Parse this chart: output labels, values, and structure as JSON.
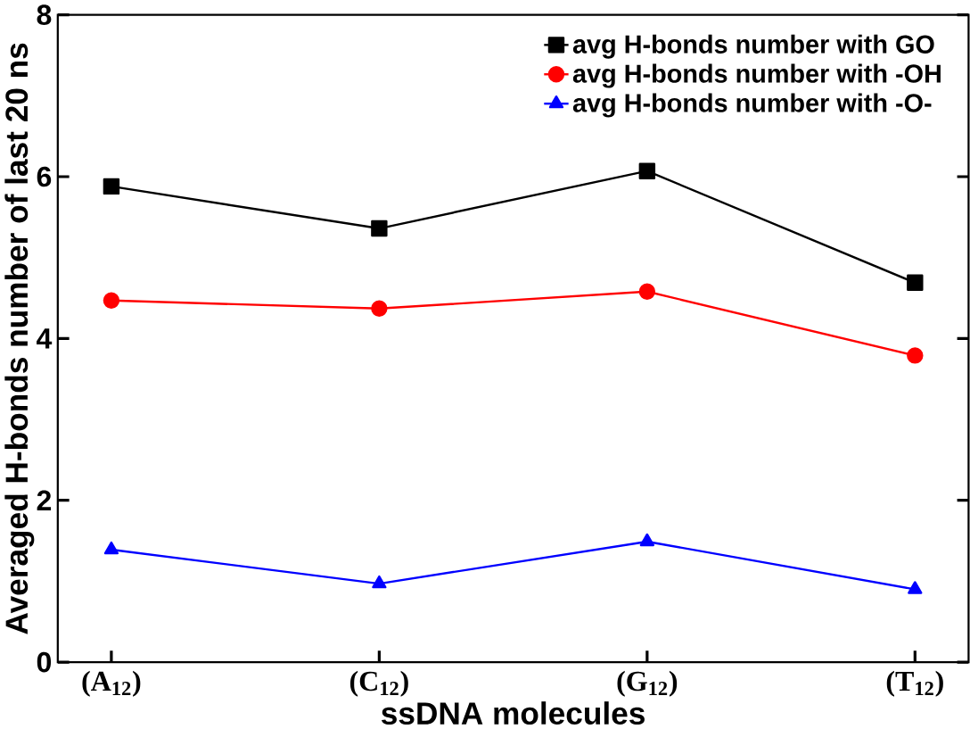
{
  "chart_data": {
    "type": "line",
    "xlabel": "ssDNA molecules",
    "ylabel": "Averaged H-bonds number of last 20 ns",
    "categories": [
      "(A$_{12}$)",
      "(C$_{12}$)",
      "(G$_{12}$)",
      "(T$_{12}$)"
    ],
    "series": [
      {
        "name": "avg H-bonds number with GO",
        "color": "#000000",
        "marker": "square",
        "values": [
          5.88,
          5.36,
          6.07,
          4.69
        ]
      },
      {
        "name": "avg H-bonds number with -OH",
        "color": "#ff0000",
        "marker": "circle",
        "values": [
          4.47,
          4.37,
          4.58,
          3.79
        ]
      },
      {
        "name": "avg H-bonds number with -O-",
        "color": "#0000ff",
        "marker": "triangle",
        "values": [
          1.39,
          0.97,
          1.49,
          0.9
        ]
      }
    ],
    "ylim": [
      0,
      8
    ],
    "yticks": [
      0,
      2,
      4,
      6,
      8
    ],
    "grid": false,
    "legend": "top right",
    "line_style": "solid"
  }
}
